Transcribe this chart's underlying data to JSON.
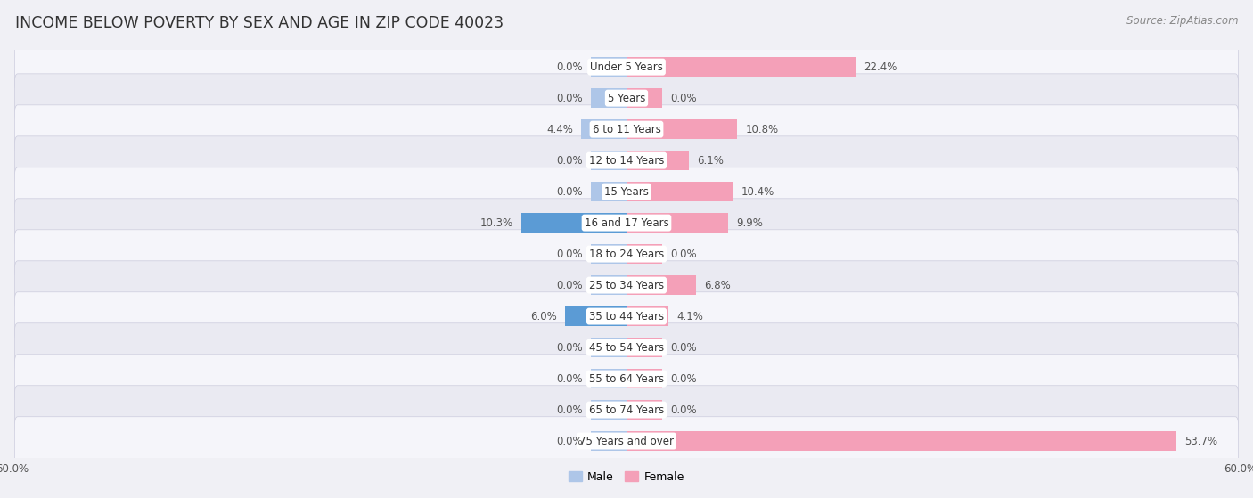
{
  "title": "INCOME BELOW POVERTY BY SEX AND AGE IN ZIP CODE 40023",
  "source": "Source: ZipAtlas.com",
  "categories": [
    "Under 5 Years",
    "5 Years",
    "6 to 11 Years",
    "12 to 14 Years",
    "15 Years",
    "16 and 17 Years",
    "18 to 24 Years",
    "25 to 34 Years",
    "35 to 44 Years",
    "45 to 54 Years",
    "55 to 64 Years",
    "65 to 74 Years",
    "75 Years and over"
  ],
  "male_values": [
    0.0,
    0.0,
    4.4,
    0.0,
    0.0,
    10.3,
    0.0,
    0.0,
    6.0,
    0.0,
    0.0,
    0.0,
    0.0
  ],
  "female_values": [
    22.4,
    0.0,
    10.8,
    6.1,
    10.4,
    9.9,
    0.0,
    6.8,
    4.1,
    0.0,
    0.0,
    0.0,
    53.7
  ],
  "male_color_light": "#aec6e8",
  "male_color_dark": "#5b9bd5",
  "female_color_light": "#f4a0b8",
  "female_color_dark": "#f4a0b8",
  "male_label": "Male",
  "female_label": "Female",
  "xlim": 60.0,
  "min_bar": 3.5,
  "bar_height": 0.62,
  "row_bg_light": "#f5f5fa",
  "row_bg_dark": "#eaeaf2",
  "label_bg": "#ffffff",
  "text_color": "#555555",
  "title_fontsize": 12.5,
  "source_fontsize": 8.5,
  "label_fontsize": 8.5,
  "category_fontsize": 8.5,
  "axis_label_fontsize": 8.5
}
